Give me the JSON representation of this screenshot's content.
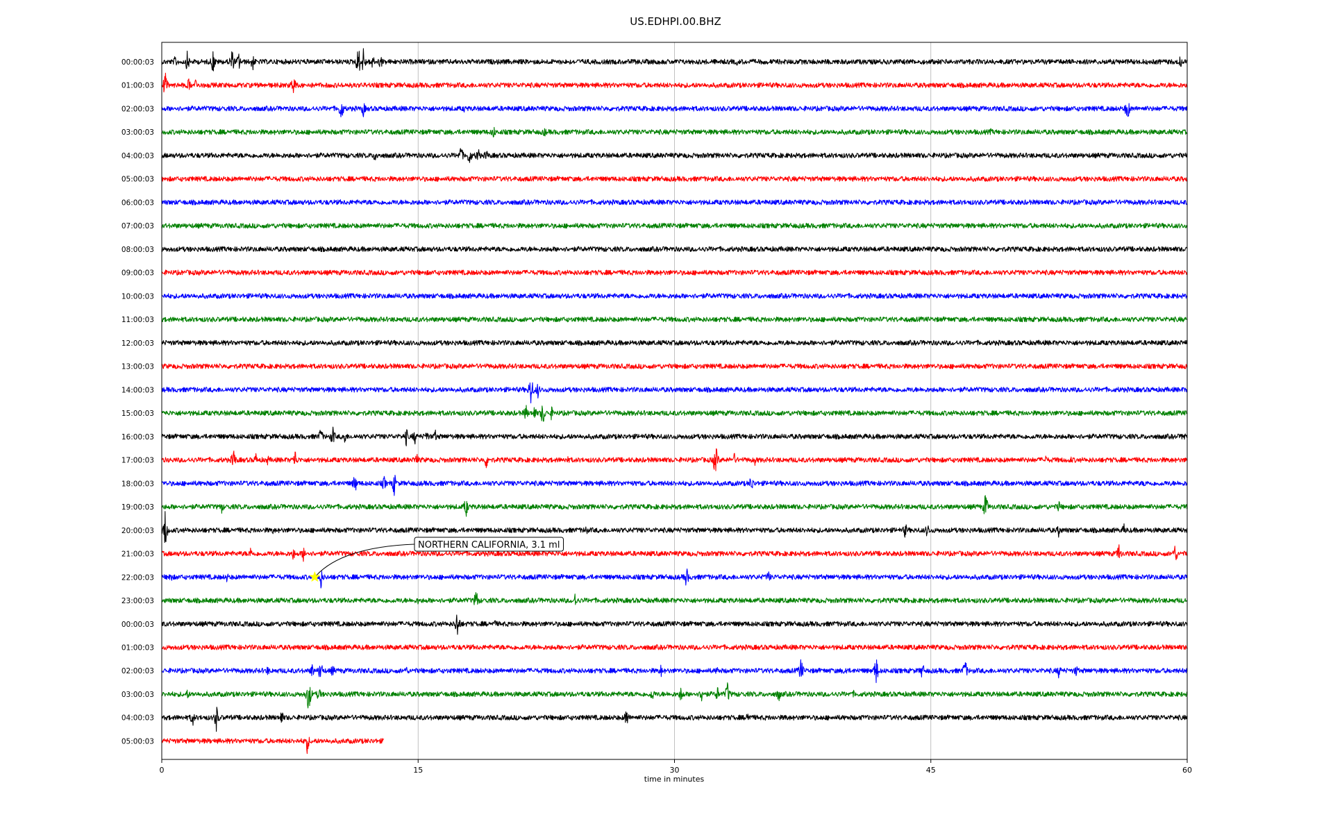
{
  "chart_data": {
    "type": "line",
    "title": "US.EDHPI.00.BHZ",
    "xlabel": "time in minutes",
    "ylabel": "",
    "xlim": [
      0,
      60
    ],
    "xticks": [
      0,
      15,
      30,
      45,
      60
    ],
    "grid": "vertical at x ticks",
    "line_colors": [
      "#000000",
      "#ff0000",
      "#0000ff",
      "#008000"
    ],
    "rows": [
      {
        "label": "00:00:03",
        "end": 60,
        "events": [
          [
            0.8,
            0.5
          ],
          [
            1.5,
            0.8
          ],
          [
            3.0,
            0.9
          ],
          [
            4.1,
            1.0
          ],
          [
            4.5,
            0.7
          ],
          [
            5.3,
            0.8
          ],
          [
            11.5,
            1.2
          ],
          [
            11.8,
            1.0
          ],
          [
            12.3,
            0.7
          ],
          [
            12.8,
            0.6
          ],
          [
            33.7,
            0.35
          ],
          [
            59.6,
            0.45
          ]
        ]
      },
      {
        "label": "01:00:03",
        "end": 60,
        "events": [
          [
            0.2,
            1.0
          ],
          [
            1.6,
            0.6
          ],
          [
            2.0,
            0.5
          ],
          [
            7.7,
            0.9
          ],
          [
            15.8,
            0.3
          ],
          [
            34.8,
            0.25
          ]
        ]
      },
      {
        "label": "02:00:03",
        "end": 60,
        "events": [
          [
            10.5,
            1.0
          ],
          [
            11.8,
            0.6
          ],
          [
            17.7,
            0.3
          ],
          [
            56.5,
            1.0
          ]
        ]
      },
      {
        "label": "03:00:03",
        "end": 60,
        "events": [
          [
            19.4,
            0.6
          ],
          [
            22.4,
            0.4
          ],
          [
            48.5,
            0.25
          ]
        ]
      },
      {
        "label": "04:00:03",
        "end": 60,
        "events": [
          [
            12.5,
            0.6
          ],
          [
            17.5,
            0.8
          ],
          [
            18.0,
            0.8
          ],
          [
            18.5,
            0.7
          ],
          [
            19.0,
            0.5
          ]
        ]
      },
      {
        "label": "05:00:03",
        "end": 60,
        "events": []
      },
      {
        "label": "06:00:03",
        "end": 60,
        "events": []
      },
      {
        "label": "07:00:03",
        "end": 60,
        "events": []
      },
      {
        "label": "08:00:03",
        "end": 60,
        "events": []
      },
      {
        "label": "09:00:03",
        "end": 60,
        "events": []
      },
      {
        "label": "10:00:03",
        "end": 60,
        "events": []
      },
      {
        "label": "11:00:03",
        "end": 60,
        "events": []
      },
      {
        "label": "12:00:03",
        "end": 60,
        "events": []
      },
      {
        "label": "13:00:03",
        "end": 60,
        "events": []
      },
      {
        "label": "14:00:03",
        "end": 60,
        "events": [
          [
            21.6,
            1.2
          ],
          [
            22.0,
            0.6
          ],
          [
            56.1,
            0.25
          ]
        ]
      },
      {
        "label": "15:00:03",
        "end": 60,
        "events": [
          [
            21.3,
            0.7
          ],
          [
            21.8,
            0.6
          ],
          [
            22.3,
            1.0
          ],
          [
            22.8,
            0.5
          ]
        ]
      },
      {
        "label": "16:00:03",
        "end": 60,
        "events": [
          [
            9.3,
            0.7
          ],
          [
            10.0,
            0.8
          ],
          [
            10.7,
            0.6
          ],
          [
            14.3,
            0.7
          ],
          [
            14.8,
            0.6
          ],
          [
            15.5,
            0.5
          ],
          [
            16.0,
            0.5
          ],
          [
            59.8,
            0.5
          ]
        ]
      },
      {
        "label": "17:00:03",
        "end": 60,
        "events": [
          [
            4.2,
            0.9
          ],
          [
            5.5,
            0.5
          ],
          [
            6.2,
            0.4
          ],
          [
            7.8,
            0.8
          ],
          [
            14.9,
            0.6
          ],
          [
            19.0,
            0.7
          ],
          [
            23.7,
            0.4
          ],
          [
            32.4,
            1.3
          ],
          [
            33.5,
            0.5
          ],
          [
            34.7,
            0.4
          ],
          [
            51.7,
            0.4
          ],
          [
            53.2,
            0.3
          ]
        ]
      },
      {
        "label": "18:00:03",
        "end": 60,
        "events": [
          [
            11.3,
            0.8
          ],
          [
            13.0,
            0.6
          ],
          [
            13.6,
            0.9
          ],
          [
            34.5,
            0.7
          ],
          [
            57.5,
            0.3
          ]
        ]
      },
      {
        "label": "19:00:03",
        "end": 60,
        "events": [
          [
            3.5,
            0.5
          ],
          [
            17.8,
            0.8
          ],
          [
            48.2,
            1.1
          ],
          [
            52.5,
            0.5
          ]
        ]
      },
      {
        "label": "20:00:03",
        "end": 60,
        "events": [
          [
            0.2,
            1.4
          ],
          [
            6.5,
            0.3
          ],
          [
            24.8,
            0.5
          ],
          [
            43.5,
            0.6
          ],
          [
            44.8,
            0.6
          ],
          [
            52.5,
            0.6
          ],
          [
            56.3,
            0.5
          ]
        ]
      },
      {
        "label": "21:00:03",
        "end": 60,
        "events": [
          [
            5.2,
            0.5
          ],
          [
            7.7,
            0.5
          ],
          [
            8.3,
            0.6
          ],
          [
            56.0,
            0.8
          ],
          [
            59.3,
            0.8
          ]
        ]
      },
      {
        "label": "22:00:03",
        "end": 60,
        "events": [
          [
            0.5,
            0.5
          ],
          [
            3.8,
            0.4
          ],
          [
            9.3,
            0.9
          ],
          [
            30.7,
            0.8
          ],
          [
            35.5,
            0.5
          ]
        ]
      },
      {
        "label": "23:00:03",
        "end": 60,
        "events": [
          [
            15.0,
            0.3
          ],
          [
            18.4,
            0.9
          ],
          [
            24.2,
            0.6
          ]
        ]
      },
      {
        "label": "00:00:03",
        "end": 60,
        "events": [
          [
            17.3,
            1.2
          ],
          [
            19.5,
            0.3
          ]
        ]
      },
      {
        "label": "01:00:03",
        "end": 60,
        "events": []
      },
      {
        "label": "02:00:03",
        "end": 60,
        "events": [
          [
            6.2,
            0.4
          ],
          [
            8.8,
            0.6
          ],
          [
            9.3,
            0.9
          ],
          [
            10.0,
            0.5
          ],
          [
            14.3,
            0.4
          ],
          [
            29.2,
            0.5
          ],
          [
            32.5,
            0.4
          ],
          [
            37.4,
            1.0
          ],
          [
            40.0,
            0.5
          ],
          [
            41.8,
            1.1
          ],
          [
            44.5,
            0.7
          ],
          [
            47.0,
            0.9
          ],
          [
            52.5,
            0.6
          ],
          [
            53.5,
            0.5
          ]
        ]
      },
      {
        "label": "03:00:03",
        "end": 60,
        "events": [
          [
            1.5,
            0.4
          ],
          [
            8.6,
            1.4
          ],
          [
            9.2,
            0.6
          ],
          [
            28.7,
            0.6
          ],
          [
            30.4,
            0.7
          ],
          [
            31.6,
            0.7
          ],
          [
            32.5,
            0.6
          ],
          [
            33.1,
            0.9
          ],
          [
            36.1,
            0.6
          ],
          [
            40.5,
            0.3
          ]
        ]
      },
      {
        "label": "04:00:03",
        "end": 60,
        "events": [
          [
            1.8,
            0.7
          ],
          [
            3.2,
            1.0
          ],
          [
            7.0,
            0.6
          ],
          [
            27.2,
            0.8
          ],
          [
            34.3,
            0.6
          ],
          [
            36.5,
            0.3
          ]
        ]
      },
      {
        "label": "05:00:03",
        "end": 13,
        "events": [
          [
            8.5,
            0.9
          ]
        ]
      }
    ],
    "annotations": [
      {
        "text": "NORTHERN CALIFORNIA, 3.1 ml",
        "row": 22,
        "x": 8.95,
        "marker": "star",
        "marker_color": "#ffff00"
      }
    ]
  }
}
